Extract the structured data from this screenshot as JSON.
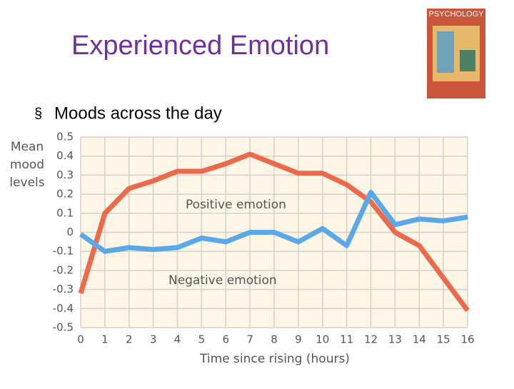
{
  "slide": {
    "title": "Experienced Emotion",
    "bullet": "Moods across the day",
    "cover_title": "PSYCHOLOGY"
  },
  "chart_data": {
    "type": "line",
    "ylabel": [
      "Mean",
      "mood",
      "levels"
    ],
    "xlabel": "Time since rising (hours)",
    "x": [
      0,
      1,
      2,
      3,
      4,
      5,
      6,
      7,
      8,
      9,
      10,
      11,
      12,
      13,
      14,
      15,
      16
    ],
    "series": [
      {
        "name": "Positive emotion",
        "color": "#ec6a4c",
        "values": [
          -0.32,
          0.1,
          0.23,
          0.27,
          0.32,
          0.32,
          0.36,
          0.41,
          0.36,
          0.31,
          0.31,
          0.25,
          0.16,
          0,
          -0.07,
          -0.24,
          -0.41
        ]
      },
      {
        "name": "Negative emotion",
        "color": "#5aa9e6",
        "values": [
          -0.01,
          -0.1,
          -0.08,
          -0.09,
          -0.08,
          -0.03,
          -0.05,
          0,
          0,
          -0.05,
          0.02,
          -0.07,
          0.21,
          0.04,
          0.07,
          0.06,
          0.08
        ]
      }
    ],
    "xlim": [
      0,
      16
    ],
    "xticks": [
      0,
      1,
      2,
      3,
      4,
      5,
      6,
      7,
      8,
      9,
      10,
      11,
      12,
      13,
      14,
      15,
      16
    ],
    "ylim": [
      -0.5,
      0.5
    ],
    "yticks": [
      -0.5,
      -0.4,
      -0.3,
      -0.2,
      -0.1,
      0,
      0.1,
      0.2,
      0.3,
      0.4,
      0.5
    ],
    "grid": true,
    "background": "#fdf5e6"
  }
}
